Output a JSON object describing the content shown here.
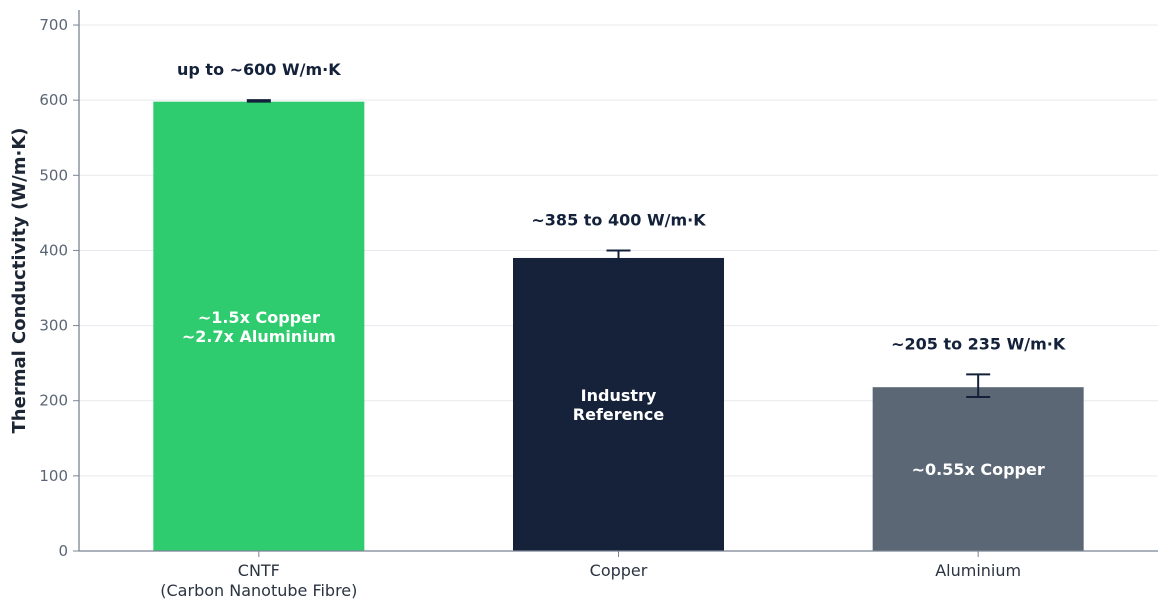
{
  "chart_data": {
    "type": "bar",
    "ylabel": "Thermal Conductivity (W/m·K)",
    "ylim": [
      0,
      720
    ],
    "yticks": [
      0,
      100,
      200,
      300,
      400,
      500,
      600,
      700
    ],
    "grid": "horizontal",
    "categories": [
      [
        "CNTF",
        "(Carbon Nanotube Fibre)"
      ],
      [
        "Copper"
      ],
      [
        "Aluminium"
      ]
    ],
    "values": [
      598,
      390,
      218
    ],
    "error_range": [
      [
        598,
        600
      ],
      [
        385,
        400
      ],
      [
        205,
        235
      ]
    ],
    "value_labels": [
      "up to ~600 W/m·K",
      "~385 to 400 W/m·K",
      "~205 to 235 W/m·K"
    ],
    "inside_labels": [
      [
        "~1.5x Copper",
        "~2.7x Aluminium"
      ],
      [
        "Industry",
        "Reference"
      ],
      [
        "~0.55x Copper"
      ]
    ],
    "colors": [
      "#2ecc6e",
      "#15223a",
      "#5c6775"
    ]
  }
}
